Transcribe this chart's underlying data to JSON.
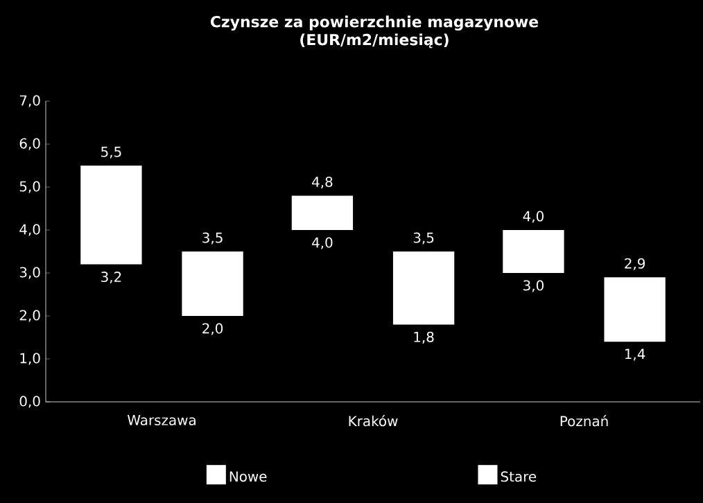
{
  "chart_data": {
    "type": "bar",
    "title": "Czynsze za powierzchnie magazynowe",
    "subtitle": "(EUR/m2/miesiąc)",
    "categories": [
      "Warszawa",
      "Kraków",
      "Poznań"
    ],
    "series": [
      {
        "name": "Nowe",
        "color": "#ffffff",
        "base": [
          3.2,
          4.0,
          3.0
        ],
        "values": [
          2.3,
          0.8,
          1.0
        ]
      },
      {
        "name": "Stare",
        "color": "#ffffff",
        "base": [
          2.0,
          1.8,
          1.4
        ],
        "values": [
          1.5,
          1.7,
          1.5
        ]
      }
    ],
    "ylim": [
      0,
      7
    ],
    "yticks": [
      {
        "value": 0,
        "label": "0,0"
      },
      {
        "value": 1,
        "label": "1,0"
      },
      {
        "value": 2,
        "label": "2,0"
      },
      {
        "value": 3,
        "label": "3,0"
      },
      {
        "value": 4,
        "label": "4,0"
      },
      {
        "value": 5,
        "label": "5,0"
      },
      {
        "value": 6,
        "label": "6,0"
      },
      {
        "value": 7,
        "label": "7,0"
      }
    ],
    "annotations": [
      "5,5",
      "3,2",
      "3,5",
      "2,0",
      "4,8",
      "4,0",
      "3,5",
      "1,8",
      "4,0",
      "3,0",
      "2,9",
      "1,4"
    ],
    "legend": "bottom",
    "grid": false
  }
}
